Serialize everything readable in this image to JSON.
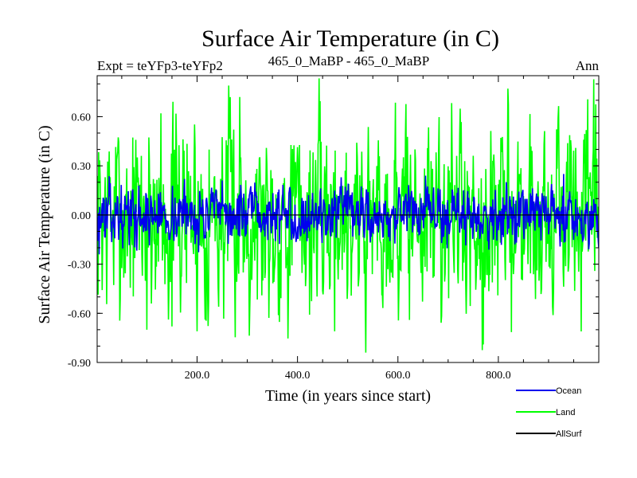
{
  "chart_data": {
    "type": "line",
    "title": "Surface Air Temperature (in C)",
    "subtitle_left": "Expt = teYFp3-teYFp2",
    "subtitle_center": "465_0_MaBP - 465_0_MaBP",
    "subtitle_right": "Ann",
    "xlabel": "Time (in years since start)",
    "ylabel": "Surface Air Temperature (in C)",
    "xlim": [
      1,
      1000
    ],
    "ylim": [
      -0.9,
      0.85
    ],
    "xticks": [
      200,
      400,
      600,
      800
    ],
    "xtick_labels": [
      "200.0",
      "400.0",
      "600.0",
      "800.0"
    ],
    "yticks": [
      0.6,
      0.3,
      0.0,
      -0.3,
      -0.6,
      -0.9
    ],
    "ytick_labels": [
      "0.60",
      "0.30",
      "0.00",
      "-0.30",
      "-0.60",
      "-0.90"
    ],
    "legend": [
      {
        "name": "Ocean",
        "color": "#0000ee"
      },
      {
        "name": "Land",
        "color": "#00ff00"
      },
      {
        "name": "AllSurf",
        "color": "#000000"
      }
    ],
    "legend_position": "bottom-right",
    "series": [
      {
        "name": "Land",
        "color": "#00ff00",
        "amplitude": 0.28,
        "seed": 7,
        "peaks": [
          {
            "x": 285,
            "y": 0.72
          },
          {
            "x": 536,
            "y": -0.84
          },
          {
            "x": 770,
            "y": -0.79
          },
          {
            "x": 128,
            "y": 0.62
          },
          {
            "x": 100,
            "y": -0.7
          },
          {
            "x": 150,
            "y": -0.68
          }
        ]
      },
      {
        "name": "Ocean",
        "color": "#0000ee",
        "amplitude": 0.08,
        "seed": 13,
        "peaks": [
          {
            "x": 175,
            "y": 0.22
          },
          {
            "x": 655,
            "y": 0.24
          },
          {
            "x": 930,
            "y": 0.25
          },
          {
            "x": 5,
            "y": -0.24
          }
        ]
      },
      {
        "name": "AllSurf",
        "color": "#000000",
        "amplitude": 0.0,
        "seed": 3,
        "peaks": []
      }
    ]
  }
}
